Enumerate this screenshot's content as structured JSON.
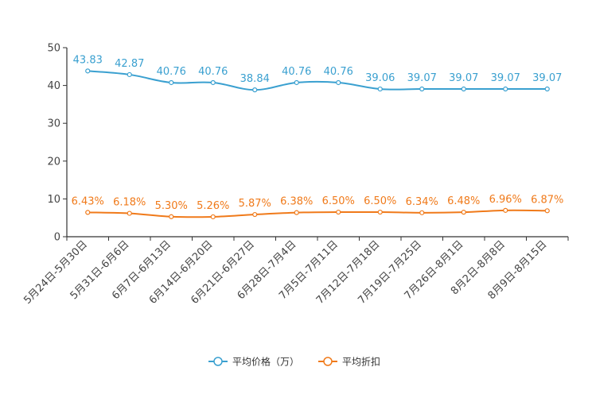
{
  "chart_data": {
    "type": "line",
    "categories": [
      "5月24日-5月30日",
      "5月31日-6月6日",
      "6月7日-6月13日",
      "6月14日-6月20日",
      "6月21日-6月27日",
      "6月28日-7月4日",
      "7月5日-7月11日",
      "7月12日-7月18日",
      "7月19日-7月25日",
      "7月26日-8月1日",
      "8月2日-8月8日",
      "8月9日-8月15日"
    ],
    "ylim": [
      0,
      50
    ],
    "yticks": [
      0,
      10,
      20,
      30,
      40,
      50
    ],
    "grid": false,
    "legend_position": "bottom-center",
    "series": [
      {
        "name": "平均价格（万）",
        "color": "#3aa0d0",
        "values": [
          43.83,
          42.87,
          40.76,
          40.76,
          38.84,
          40.76,
          40.76,
          39.06,
          39.07,
          39.07,
          39.07,
          39.07
        ],
        "labels": [
          "43.83",
          "42.87",
          "40.76",
          "40.76",
          "38.84",
          "40.76",
          "40.76",
          "39.06",
          "39.07",
          "39.07",
          "39.07",
          "39.07"
        ]
      },
      {
        "name": "平均折扣",
        "color": "#f07a1a",
        "values": [
          6.43,
          6.18,
          5.3,
          5.26,
          5.87,
          6.38,
          6.5,
          6.5,
          6.34,
          6.48,
          6.96,
          6.87
        ],
        "labels": [
          "6.43%",
          "6.18%",
          "5.30%",
          "5.26%",
          "5.87%",
          "6.38%",
          "6.50%",
          "6.50%",
          "6.34%",
          "6.48%",
          "6.96%",
          "6.87%"
        ]
      }
    ]
  }
}
